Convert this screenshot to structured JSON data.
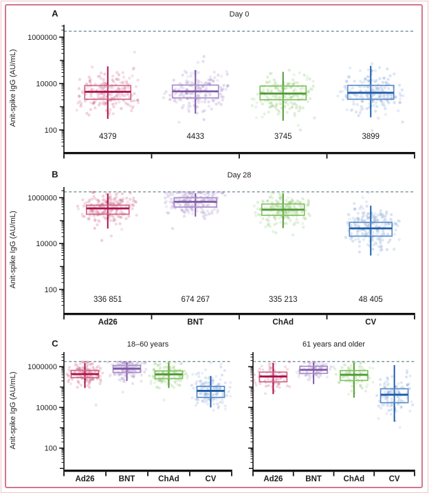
{
  "figure": {
    "border_color": "#d2768f",
    "background": "#ffffff",
    "text_color": "#1c1c1c"
  },
  "chart_data": {
    "type": "box",
    "subtype": "box-plot-with-jittered-points",
    "scale": "log10",
    "categories": [
      "Ad26",
      "BNT",
      "ChAd",
      "CV"
    ],
    "y_axis": {
      "label": "Anit-spike IgG (AU/mL)",
      "tick_labels": [
        "1000000",
        "10000",
        "100"
      ],
      "tick_values": [
        1000000,
        10000,
        100
      ],
      "range": [
        10,
        3000000
      ],
      "grid": false
    },
    "uloq_line": {
      "value": 1800000,
      "style": "dashed",
      "color": "#64838f"
    },
    "series_colors": {
      "Ad26": {
        "dark": "#ad0e4b",
        "light": "#cf6484",
        "points": "#c14a71"
      },
      "BNT": {
        "dark": "#7e57a5",
        "light": "#a88fc8",
        "points": "#9a7fc0"
      },
      "ChAd": {
        "dark": "#4f9a33",
        "light": "#82c362",
        "points": "#7fbf5f"
      },
      "CV": {
        "dark": "#1b5caa",
        "light": "#5b8cc8",
        "points": "#6e93cf"
      }
    },
    "panels": [
      {
        "letter": "A",
        "title": "Day 0",
        "annotation_values": [
          "4379",
          "4433",
          "3745",
          "3899"
        ],
        "show_x_labels": false,
        "boxes": [
          {
            "group": "Ad26",
            "whisker_low": 300,
            "q1": 2100,
            "median": 4400,
            "q3": 8200,
            "whisker_high": 55000,
            "n_points": 190
          },
          {
            "group": "BNT",
            "whisker_low": 500,
            "q1": 2400,
            "median": 4600,
            "q3": 8600,
            "whisker_high": 38000,
            "n_points": 190
          },
          {
            "group": "ChAd",
            "whisker_low": 250,
            "q1": 2000,
            "median": 3700,
            "q3": 7800,
            "whisker_high": 32000,
            "n_points": 190
          },
          {
            "group": "CV",
            "whisker_low": 350,
            "q1": 2100,
            "median": 4000,
            "q3": 8300,
            "whisker_high": 58000,
            "n_points": 190
          }
        ]
      },
      {
        "letter": "B",
        "title": "Day 28",
        "annotation_values": [
          "336 851",
          "674 267",
          "335 213",
          "48 405"
        ],
        "show_x_labels": true,
        "boxes": [
          {
            "group": "Ad26",
            "whisker_low": 45000,
            "q1": 190000,
            "median": 340000,
            "q3": 470000,
            "whisker_high": 1500000,
            "n_points": 210
          },
          {
            "group": "BNT",
            "whisker_low": 150000,
            "q1": 390000,
            "median": 660000,
            "q3": 1000000,
            "whisker_high": 1550000,
            "n_points": 210
          },
          {
            "group": "ChAd",
            "whisker_low": 47000,
            "q1": 170000,
            "median": 300000,
            "q3": 530000,
            "whisker_high": 1550000,
            "n_points": 200
          },
          {
            "group": "CV",
            "whisker_low": 3000,
            "q1": 21000,
            "median": 46000,
            "q3": 84000,
            "whisker_high": 450000,
            "n_points": 210
          }
        ]
      },
      {
        "letter": "C",
        "title": "18–60 years",
        "annotation_values": null,
        "show_x_labels": true,
        "boxes": [
          {
            "group": "Ad26",
            "whisker_low": 90000,
            "q1": 290000,
            "median": 430000,
            "q3": 660000,
            "whisker_high": 1500000,
            "n_points": 150
          },
          {
            "group": "BNT",
            "whisker_low": 200000,
            "q1": 520000,
            "median": 800000,
            "q3": 1150000,
            "whisker_high": 1600000,
            "n_points": 150
          },
          {
            "group": "ChAd",
            "whisker_low": 90000,
            "q1": 260000,
            "median": 420000,
            "q3": 620000,
            "whisker_high": 1600000,
            "n_points": 140
          },
          {
            "group": "CV",
            "whisker_low": 10000,
            "q1": 31000,
            "median": 65000,
            "q3": 108000,
            "whisker_high": 350000,
            "n_points": 140
          }
        ]
      },
      {
        "letter": null,
        "title": "61 years and older",
        "annotation_values": null,
        "show_x_labels": true,
        "boxes": [
          {
            "group": "Ad26",
            "whisker_low": 45000,
            "q1": 180000,
            "median": 330000,
            "q3": 540000,
            "whisker_high": 1500000,
            "n_points": 85
          },
          {
            "group": "BNT",
            "whisker_low": 140000,
            "q1": 470000,
            "median": 700000,
            "q3": 1050000,
            "whisker_high": 1600000,
            "n_points": 95
          },
          {
            "group": "ChAd",
            "whisker_low": 30000,
            "q1": 210000,
            "median": 400000,
            "q3": 650000,
            "whisker_high": 1700000,
            "n_points": 95
          },
          {
            "group": "CV",
            "whisker_low": 2000,
            "q1": 17000,
            "median": 42000,
            "q3": 82000,
            "whisker_high": 1200000,
            "n_points": 115
          }
        ]
      }
    ]
  }
}
